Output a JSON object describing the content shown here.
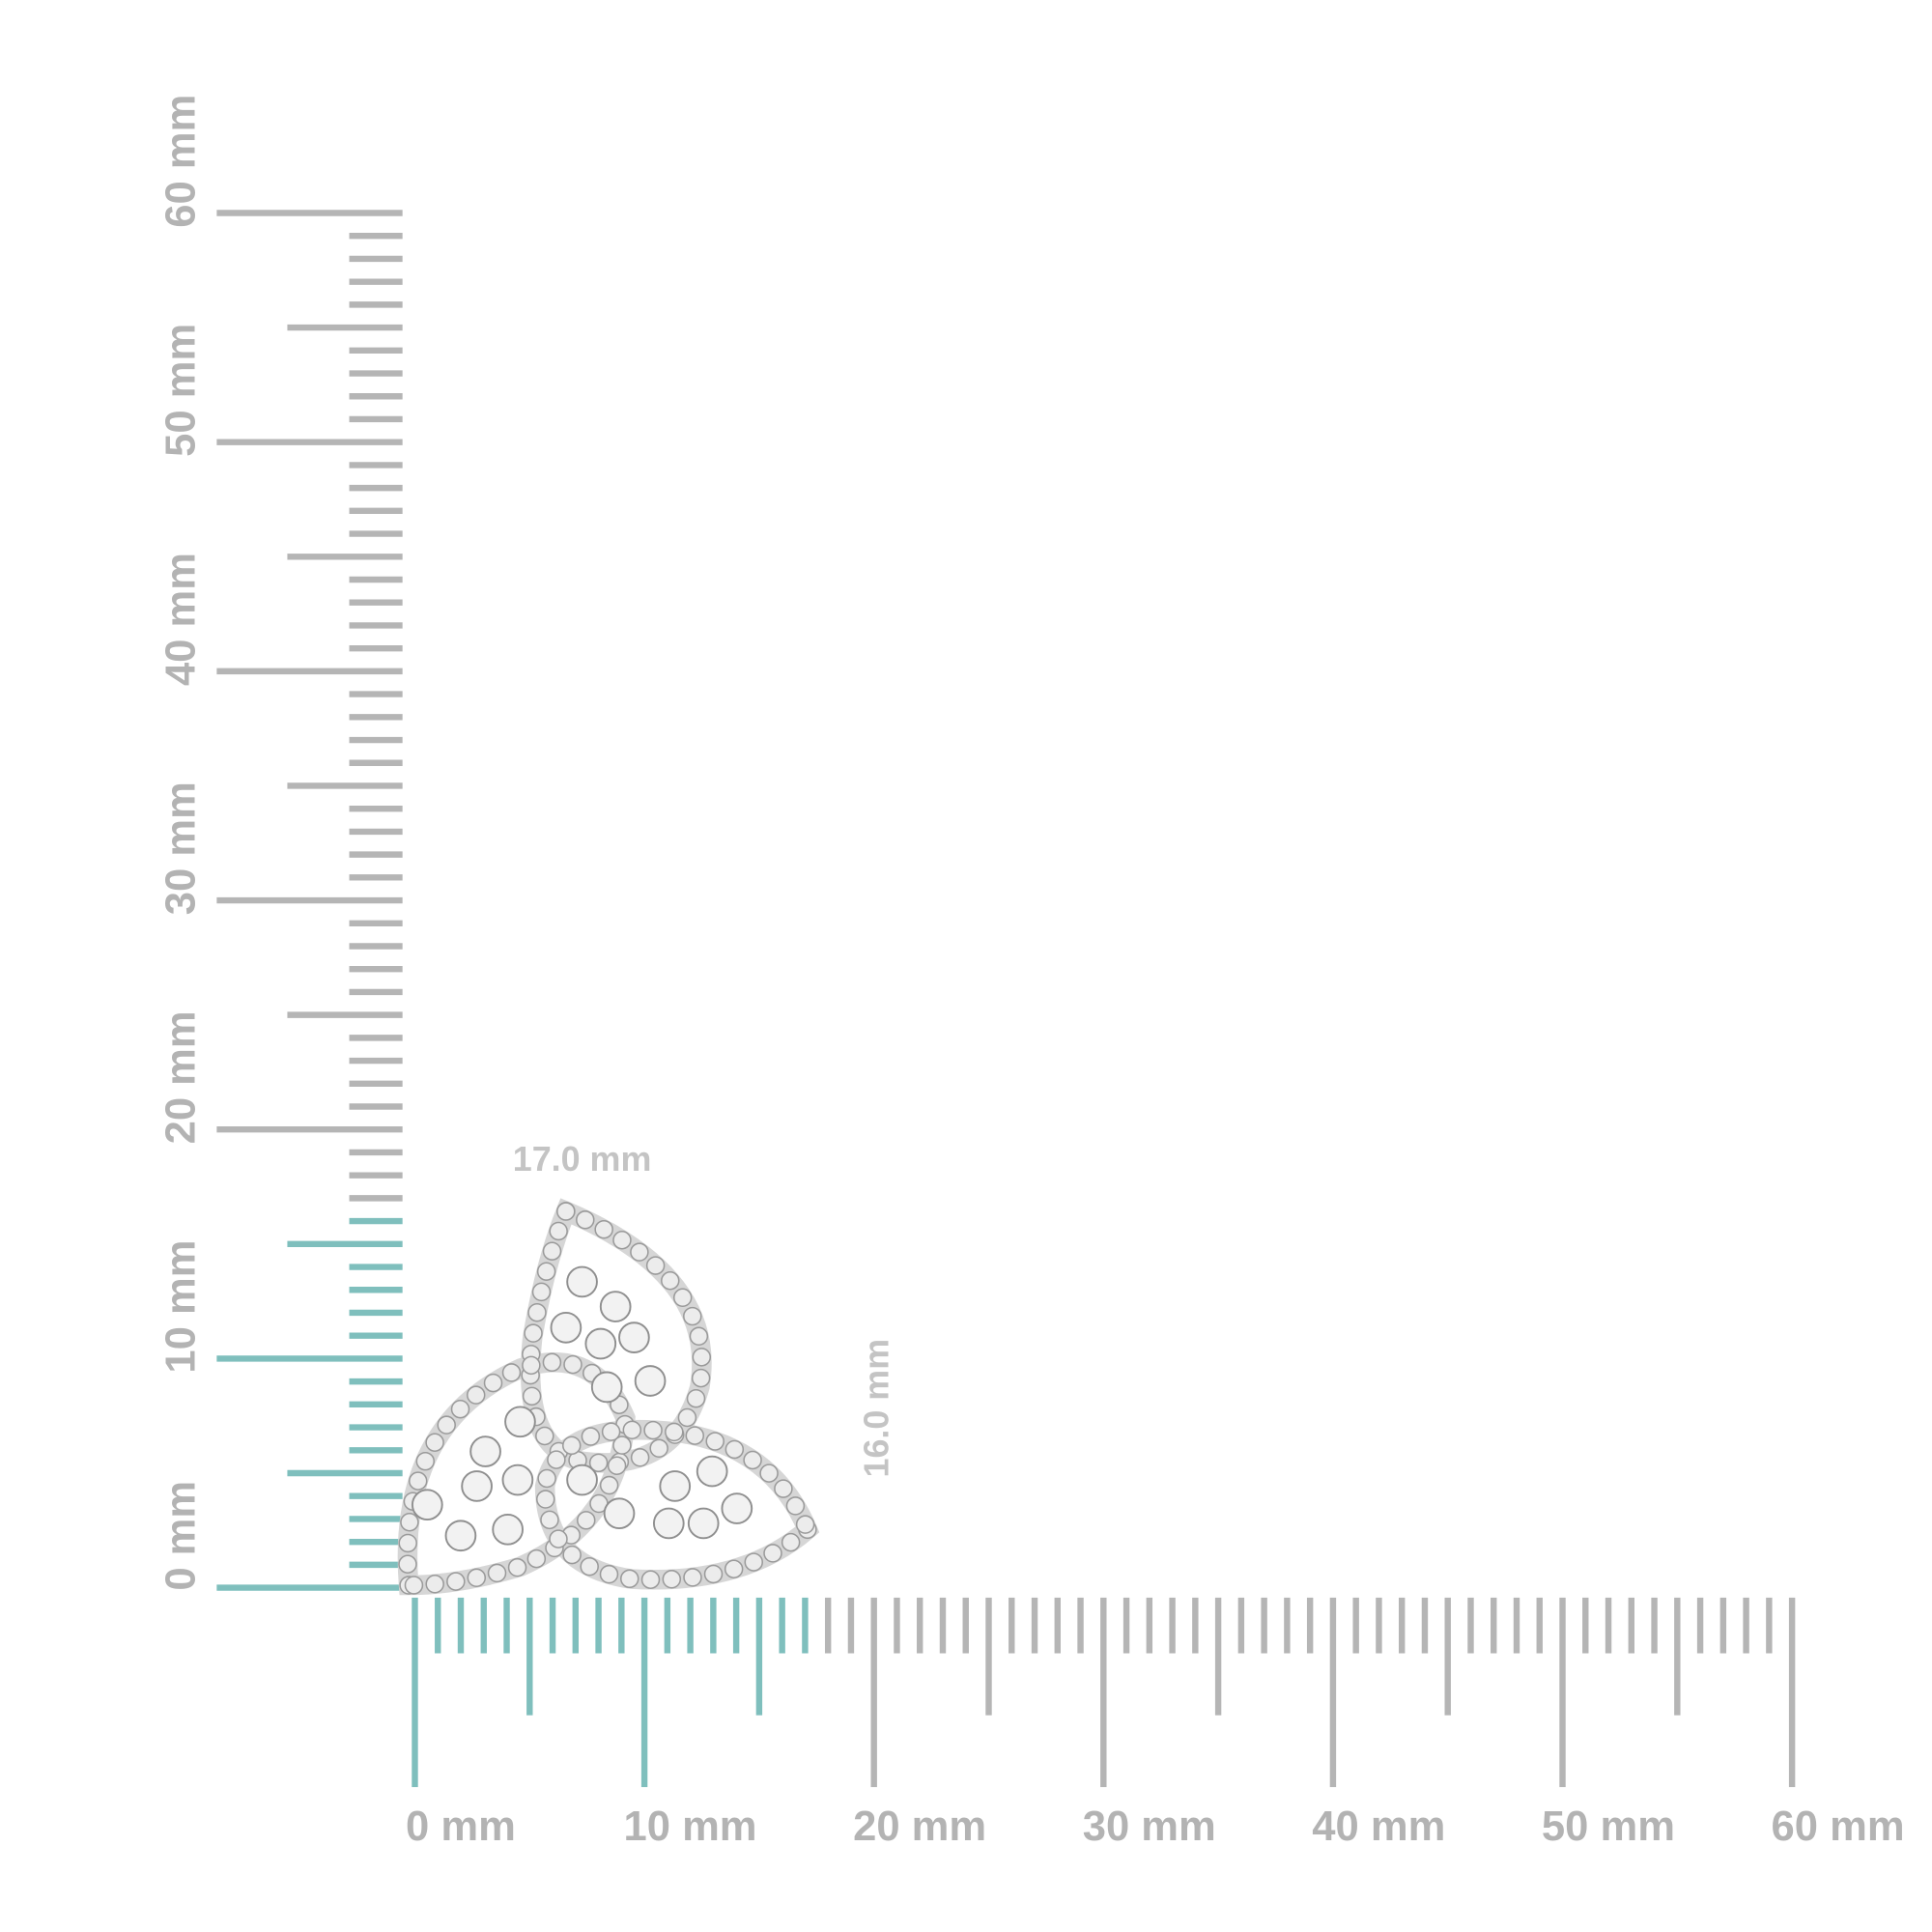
{
  "horizontal_ruler": {
    "labels": [
      "0 mm",
      "10 mm",
      "20 mm",
      "30 mm",
      "40 mm",
      "50 mm",
      "60 mm"
    ]
  },
  "vertical_ruler": {
    "labels": [
      "0 mm",
      "10 mm",
      "20 mm",
      "30 mm",
      "40 mm",
      "50 mm",
      "60 mm"
    ]
  },
  "dimensions": {
    "width": "17.0 mm",
    "height": "16.0 mm"
  }
}
